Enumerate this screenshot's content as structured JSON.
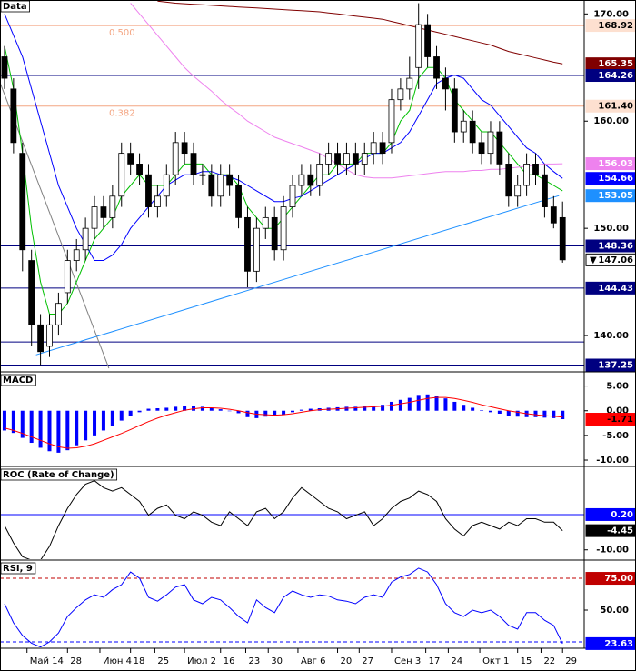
{
  "chart_data": [
    {
      "type": "candlestick",
      "title": "Data",
      "xlim": [
        -0.5,
        64.4
      ],
      "xticks": [
        {
          "value": 2.5,
          "label": "Май 14"
        },
        {
          "value": 7,
          "label": "28"
        },
        {
          "value": 10.6,
          "label": "Июн 4"
        },
        {
          "value": 14,
          "label": "18"
        },
        {
          "value": 16.7,
          "label": "25"
        },
        {
          "value": 20,
          "label": "Июл 2"
        },
        {
          "value": 24,
          "label": "16"
        },
        {
          "value": 26.8,
          "label": "23"
        },
        {
          "value": 29.3,
          "label": "30"
        },
        {
          "value": 32.6,
          "label": "Авг 6"
        },
        {
          "value": 37,
          "label": "20"
        },
        {
          "value": 39.4,
          "label": "27"
        },
        {
          "value": 43,
          "label": "Сен 3"
        },
        {
          "value": 46.8,
          "label": "17"
        },
        {
          "value": 49.3,
          "label": "24"
        },
        {
          "value": 52.8,
          "label": "Окт 1"
        },
        {
          "value": 57,
          "label": "15"
        },
        {
          "value": 59.6,
          "label": "22"
        },
        {
          "value": 62,
          "label": "29"
        }
      ],
      "ylim": [
        136.7,
        171.3
      ],
      "yticks": [
        {
          "value": 170,
          "label": "170.00"
        },
        {
          "value": 160,
          "label": "160.00"
        },
        {
          "value": 150,
          "label": "150.00"
        },
        {
          "value": 140,
          "label": "140.00"
        }
      ],
      "open": [
        166,
        163,
        157,
        147,
        141,
        139,
        141,
        144,
        147,
        148,
        150,
        152,
        151,
        153,
        157,
        156,
        155,
        152,
        153,
        155,
        158,
        157,
        155,
        155,
        153,
        155,
        154,
        151,
        146,
        150,
        151,
        148,
        152,
        154,
        155,
        154,
        156,
        157,
        156,
        157,
        156,
        157,
        158,
        158,
        162,
        163,
        165,
        169,
        166,
        164,
        163,
        159,
        160,
        158,
        157,
        159,
        156,
        153,
        154,
        156,
        155,
        152,
        151
      ],
      "high": [
        167,
        164,
        158,
        148,
        142,
        142,
        144,
        148,
        149,
        151,
        153,
        153,
        154,
        158,
        158,
        157,
        156,
        154,
        156,
        159,
        159,
        158,
        156,
        156,
        156,
        156,
        155,
        152,
        151,
        152,
        152,
        153,
        155,
        156,
        156,
        157,
        158,
        158,
        158,
        158,
        158,
        159,
        159,
        163,
        164,
        166,
        171,
        170,
        167,
        165,
        164,
        161,
        161,
        159,
        160,
        160,
        157,
        155,
        157,
        157,
        156,
        153,
        152.5
      ],
      "low": [
        163,
        157,
        146,
        139,
        137.25,
        138,
        140,
        143,
        146,
        147,
        149,
        150,
        150,
        152,
        155,
        154,
        151,
        151,
        152,
        154,
        156,
        154,
        154,
        152,
        152,
        153,
        150,
        144.5,
        145,
        149,
        147,
        147,
        151,
        153,
        153,
        153,
        155,
        155,
        155,
        155,
        155,
        156,
        156,
        157,
        161,
        162,
        163,
        165,
        163,
        161,
        158,
        158,
        157,
        156,
        156,
        155,
        152,
        152,
        153,
        154,
        151,
        150,
        146.8
      ],
      "close": [
        164,
        158,
        148,
        141,
        138.5,
        141,
        143,
        147,
        148,
        150,
        152,
        151,
        153,
        157,
        156,
        155,
        152,
        153,
        155,
        158,
        157,
        155,
        155,
        153,
        155,
        154,
        151,
        146,
        150,
        151,
        148,
        152,
        154,
        155,
        154,
        156,
        157,
        156,
        157,
        156,
        157,
        158,
        157,
        162,
        163,
        164,
        169,
        166,
        164,
        163,
        159,
        160,
        158,
        157,
        159,
        156,
        153,
        154,
        156,
        155,
        152,
        150.5,
        147.06
      ],
      "up_color": "#ffffff",
      "down_color": "#000000",
      "series": [
        {
          "color": "#00c000",
          "values": [
            167,
            163,
            157,
            150,
            145,
            142,
            142,
            143,
            145,
            147,
            149,
            150,
            151,
            153,
            154,
            155,
            154,
            154,
            154,
            155,
            156,
            156,
            156,
            155,
            155,
            155,
            154,
            152,
            151,
            150,
            150,
            151,
            152,
            153,
            154,
            155,
            155,
            156,
            156,
            156,
            157,
            157,
            157,
            158,
            160,
            161,
            164,
            165,
            165,
            164,
            162,
            161,
            160,
            159,
            159,
            158,
            157,
            156,
            155,
            155,
            154.5,
            154,
            153.5
          ]
        },
        {
          "color": "#0000ff",
          "values": [
            170,
            168,
            166,
            163,
            160,
            157,
            154,
            152,
            150,
            148.5,
            147,
            147,
            147.5,
            148.5,
            150,
            151,
            152,
            153,
            154,
            154.5,
            155,
            155,
            155.3,
            155.3,
            155,
            154.8,
            154.5,
            154,
            153.5,
            153,
            152.5,
            152.5,
            152.8,
            153,
            153.5,
            154,
            154.5,
            155,
            155.5,
            156,
            156.5,
            157,
            157,
            157.5,
            158,
            159,
            160.5,
            162,
            163.5,
            164,
            164.3,
            164,
            163,
            162,
            161.5,
            160.5,
            159.5,
            158.5,
            157.5,
            157,
            156,
            155.3,
            154.66
          ]
        },
        {
          "color": "#ee82ee",
          "values": [
            null,
            null,
            null,
            null,
            null,
            null,
            null,
            null,
            null,
            null,
            null,
            null,
            null,
            null,
            171,
            170,
            169,
            168,
            167,
            166,
            165,
            164.2,
            163.5,
            162.8,
            162,
            161.3,
            160.7,
            160,
            159.5,
            159,
            158.5,
            158.2,
            157.9,
            157.6,
            157.3,
            157,
            156.5,
            156,
            155.5,
            155,
            154.8,
            154.7,
            154.7,
            154.7,
            154.8,
            154.9,
            155,
            155.1,
            155.2,
            155.3,
            155.3,
            155.3,
            155.4,
            155.4,
            155.5,
            155.5,
            155.6,
            155.7,
            155.8,
            155.9,
            156,
            156,
            156.03
          ]
        },
        {
          "color": "#800000",
          "values": [
            null,
            null,
            null,
            null,
            null,
            null,
            null,
            null,
            null,
            null,
            null,
            null,
            null,
            null,
            null,
            null,
            null,
            171.2,
            171.1,
            171,
            170.95,
            170.9,
            170.85,
            170.8,
            170.75,
            170.7,
            170.65,
            170.6,
            170.55,
            170.5,
            170.45,
            170.4,
            170.35,
            170.3,
            170.25,
            170.2,
            170.1,
            170,
            169.9,
            169.8,
            169.7,
            169.6,
            169.5,
            169.3,
            169.1,
            168.9,
            168.7,
            168.5,
            168.3,
            168.1,
            167.9,
            167.7,
            167.5,
            167.3,
            167.1,
            166.8,
            166.5,
            166.3,
            166.1,
            165.9,
            165.7,
            165.5,
            165.35
          ]
        }
      ],
      "levels": [
        {
          "value": 164.26,
          "color": "#000080"
        },
        {
          "value": 148.36,
          "color": "#000080"
        },
        {
          "value": 144.43,
          "color": "#000080"
        },
        {
          "value": 139.4,
          "color": "#000080"
        },
        {
          "value": 137.25,
          "color": "#000080"
        }
      ],
      "fib": [
        {
          "value": 168.92,
          "label": "0.500",
          "color": "#f4a582"
        },
        {
          "value": 161.4,
          "label": "0.382",
          "color": "#f4a582"
        }
      ],
      "trendlines": [
        {
          "x": [
            3.5,
            61.6
          ],
          "y": [
            138.2,
            153.05
          ],
          "color": "#1e90ff"
        },
        {
          "x": [
            -0.5,
            11.6
          ],
          "y": [
            163.6,
            136.95
          ],
          "color": "#808080"
        }
      ],
      "price_labels": [
        {
          "value": 168.92,
          "label": "168.92",
          "bg": "#fde0d0",
          "fg": "#000000"
        },
        {
          "value": 165.35,
          "label": "165.35",
          "bg": "#800000",
          "fg": "#ffffff"
        },
        {
          "value": 164.26,
          "label": "164.26",
          "bg": "#000080",
          "fg": "#ffffff"
        },
        {
          "value": 161.4,
          "label": "161.40",
          "bg": "#fde0d0",
          "fg": "#000000"
        },
        {
          "value": 156.03,
          "label": "156.03",
          "bg": "#ee82ee",
          "fg": "#ffffff"
        },
        {
          "value": 154.66,
          "label": "154.66",
          "bg": "#0000ff",
          "fg": "#ffffff"
        },
        {
          "value": 153.05,
          "label": "153.05",
          "bg": "#1e90ff",
          "fg": "#ffffff"
        },
        {
          "value": 148.36,
          "label": "148.36",
          "bg": "#000080",
          "fg": "#ffffff"
        },
        {
          "value": 147.06,
          "label": "147.06",
          "bg": "#ffffff",
          "fg": "#000000",
          "arrow": "▼"
        },
        {
          "value": 144.43,
          "label": "144.43",
          "bg": "#000080",
          "fg": "#ffffff"
        },
        {
          "value": 137.25,
          "label": "137.25",
          "bg": "#000080",
          "fg": "#ffffff"
        }
      ]
    },
    {
      "type": "macd",
      "title": "MACD",
      "ylim": [
        -11.1,
        7.5
      ],
      "yticks": [
        {
          "value": 5,
          "label": "5.00"
        },
        {
          "value": 0,
          "label": "0.00"
        },
        {
          "value": -5,
          "label": "-5.00"
        },
        {
          "value": -10,
          "label": "-10.00"
        }
      ],
      "values": [
        -4,
        -4.5,
        -5.5,
        -6.5,
        -7.5,
        -8.2,
        -8.5,
        -8,
        -7,
        -6,
        -5,
        -4,
        -3,
        -2,
        -1,
        -0.3,
        0.4,
        0.5,
        0.6,
        0.8,
        1,
        1,
        0.8,
        0.6,
        0.3,
        0,
        -0.5,
        -1.3,
        -1.5,
        -1.2,
        -1,
        -0.8,
        -0.3,
        0.2,
        0.4,
        0.5,
        0.6,
        0.7,
        0.8,
        0.8,
        0.9,
        1,
        1.2,
        1.8,
        2.2,
        2.6,
        3.2,
        3.3,
        3,
        2.5,
        1.8,
        1.2,
        0.6,
        0.1,
        -0.3,
        -0.6,
        -1,
        -1.2,
        -1.3,
        -1.3,
        -1.4,
        -1.5,
        -1.71
      ],
      "color": "#0000ff",
      "signal": [
        -3.5,
        -4,
        -4.6,
        -5.3,
        -6,
        -6.7,
        -7.3,
        -7.6,
        -7.5,
        -7.2,
        -6.7,
        -6,
        -5.3,
        -4.6,
        -3.8,
        -3,
        -2.2,
        -1.5,
        -0.9,
        -0.4,
        0.1,
        0.4,
        0.6,
        0.6,
        0.5,
        0.3,
        0,
        -0.4,
        -0.7,
        -0.8,
        -0.9,
        -0.8,
        -0.6,
        -0.3,
        0,
        0.2,
        0.3,
        0.4,
        0.5,
        0.6,
        0.7,
        0.8,
        0.9,
        1.1,
        1.4,
        1.7,
        2.1,
        2.5,
        2.7,
        2.7,
        2.5,
        2.1,
        1.7,
        1.2,
        0.8,
        0.4,
        0,
        -0.3,
        -0.6,
        -0.8,
        -1,
        -1.1,
        -1.3
      ],
      "signal_color": "#ff0000",
      "levels": [],
      "price_labels": [
        {
          "value": -1.71,
          "label": "-1.71",
          "bg": "#ff0000",
          "fg": "#000000"
        }
      ]
    },
    {
      "type": "line",
      "title": "ROC (Rate of Change)",
      "ylim": [
        -12.7,
        13.6
      ],
      "yticks": [
        {
          "value": -10,
          "label": "-10.00"
        }
      ],
      "values": [
        -3,
        -8,
        -12,
        -13,
        -13,
        -9,
        -3,
        2,
        6,
        9,
        10,
        8,
        7,
        8,
        6,
        4,
        0,
        2,
        3,
        0,
        -1,
        1,
        0,
        -2,
        -3,
        1,
        -1,
        -3,
        1,
        2,
        -1,
        1,
        5,
        8,
        6,
        4,
        2,
        1,
        -1,
        0,
        1,
        -3,
        -1,
        2,
        4,
        5,
        7,
        6,
        4,
        -1,
        -4,
        -6,
        -3,
        -2,
        -3,
        -4,
        -2,
        -3,
        -1,
        -1,
        -2,
        -2,
        -4.45
      ],
      "color": "#000000",
      "levels": [
        {
          "value": 0.2,
          "color": "#0000ff"
        }
      ],
      "price_labels": [
        {
          "value": 0.2,
          "label": "0.20",
          "bg": "#0000ff",
          "fg": "#ffffff"
        },
        {
          "value": -4.45,
          "label": "-4.45",
          "bg": "#000000",
          "fg": "#ffffff"
        }
      ]
    },
    {
      "type": "line",
      "title": "RSI, 9",
      "ylim": [
        20.7,
        87.9
      ],
      "yticks": [
        {
          "value": 50,
          "label": "50.00"
        }
      ],
      "values": [
        55,
        40,
        30,
        24,
        21,
        25,
        32,
        45,
        52,
        58,
        62,
        60,
        66,
        70,
        80,
        75,
        60,
        57,
        62,
        68,
        70,
        58,
        55,
        60,
        58,
        52,
        45,
        40,
        58,
        52,
        48,
        60,
        65,
        62,
        60,
        62,
        61,
        58,
        57,
        55,
        60,
        62,
        60,
        72,
        76,
        78,
        83,
        80,
        70,
        55,
        48,
        45,
        50,
        48,
        50,
        45,
        38,
        35,
        48,
        48,
        42,
        38,
        23.63
      ],
      "color": "#0000ff",
      "levels": [
        {
          "value": 75,
          "color": "#c00000",
          "dashed": true
        },
        {
          "value": 25,
          "color": "#0000ff",
          "dashed": true
        }
      ],
      "price_labels": [
        {
          "value": 75,
          "label": "75.00",
          "bg": "#c00000",
          "fg": "#ffffff"
        },
        {
          "value": 23.63,
          "label": "23.63",
          "bg": "#0000ff",
          "fg": "#ffffff"
        }
      ]
    }
  ]
}
